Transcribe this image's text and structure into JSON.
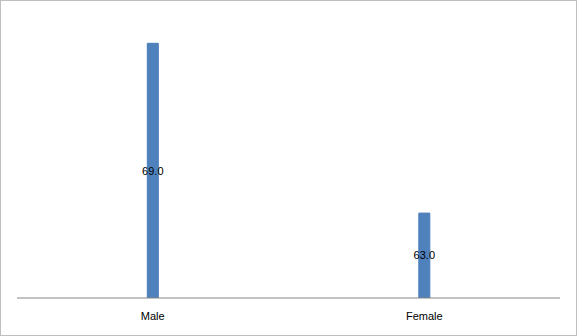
{
  "chart_data": {
    "type": "bar",
    "categories": [
      "Male",
      "Female"
    ],
    "values": [
      69,
      63
    ],
    "value_labels": [
      "69.0",
      "63.0"
    ],
    "color": "#4f81bd",
    "ylim": [
      60,
      70
    ],
    "data_labels": true,
    "tick_labels": "x",
    "grid": false
  }
}
